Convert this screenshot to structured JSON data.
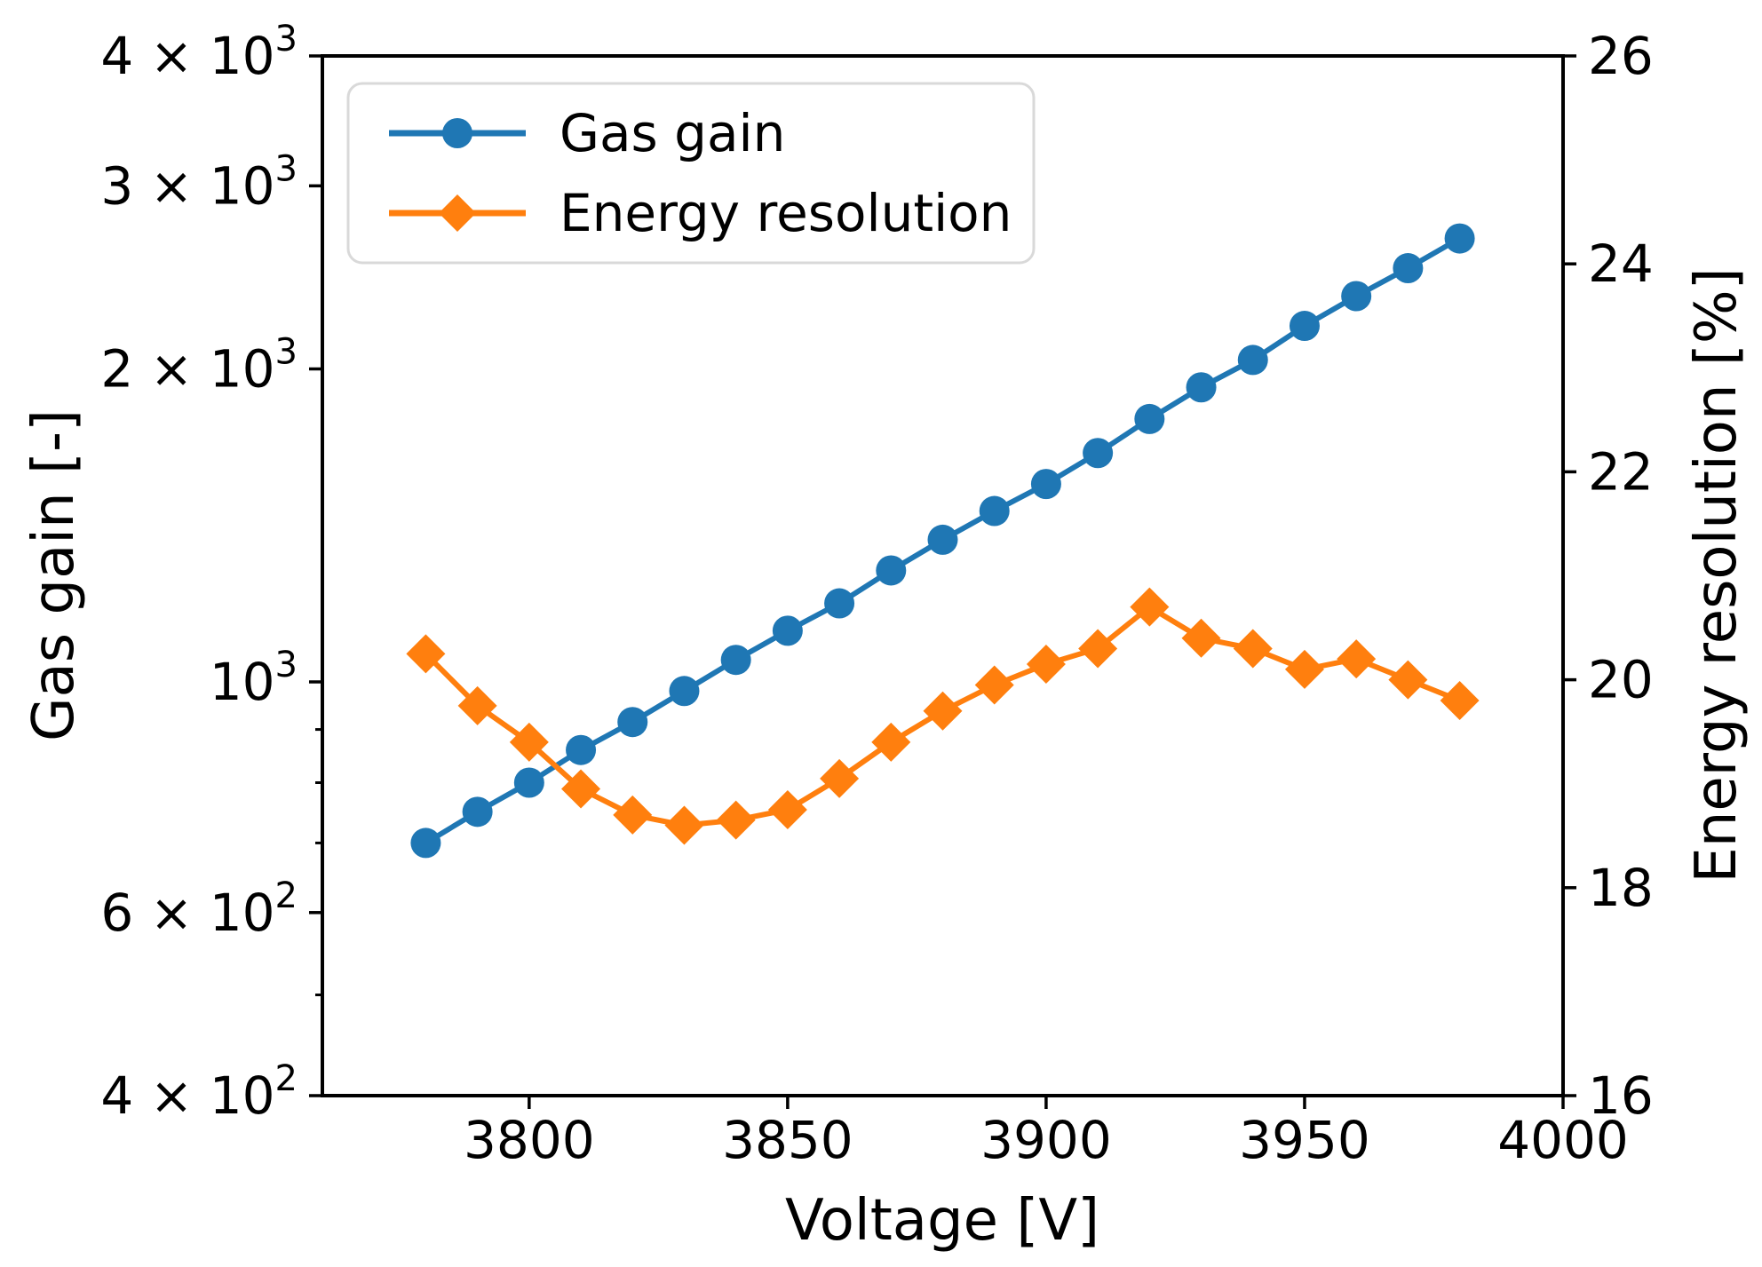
{
  "figure": {
    "background": "#ffffff"
  },
  "axes": {
    "xlabel": "Voltage [V]",
    "ylabel_left": "Gas gain [-]",
    "ylabel_right": "Energy resolution [%]"
  },
  "legend": {
    "position": "upper left",
    "items": [
      {
        "label": "Gas gain",
        "color": "#1f77b4",
        "marker": "circle"
      },
      {
        "label": "Energy resolution",
        "color": "#ff7f0e",
        "marker": "diamond"
      }
    ]
  },
  "colors": {
    "gas_gain": "#1f77b4",
    "energy_resolution": "#ff7f0e",
    "axis": "#000000",
    "legend_border": "#d9d9d9"
  },
  "chart_data": {
    "type": "line",
    "title": "",
    "xlabel": "Voltage [V]",
    "ylabel_left": "Gas gain [-]",
    "ylabel_right": "Energy resolution [%]",
    "grid": false,
    "legend_position": "upper left",
    "x_axis": {
      "min": 3760,
      "max": 4000,
      "ticks": [
        {
          "v": 3800,
          "label": "3800"
        },
        {
          "v": 3850,
          "label": "3850"
        },
        {
          "v": 3900,
          "label": "3900"
        },
        {
          "v": 3950,
          "label": "3950"
        },
        {
          "v": 4000,
          "label": "4000"
        }
      ]
    },
    "y_axis_left": {
      "scale": "log",
      "min": 400,
      "max": 4000,
      "labeled_ticks": [
        {
          "v": 4000,
          "base": "4 × 10",
          "exp": "3"
        },
        {
          "v": 3000,
          "base": "3 × 10",
          "exp": "3"
        },
        {
          "v": 2000,
          "base": "2 × 10",
          "exp": "3"
        },
        {
          "v": 1000,
          "base": "10",
          "exp": "3"
        },
        {
          "v": 600,
          "base": "6 × 10",
          "exp": "2"
        },
        {
          "v": 400,
          "base": "4 × 10",
          "exp": "2"
        }
      ],
      "minor_ticks": [
        500,
        700,
        800,
        900
      ]
    },
    "y_axis_right": {
      "scale": "linear",
      "min": 16,
      "max": 26,
      "ticks": [
        16,
        18,
        20,
        22,
        24,
        26
      ]
    },
    "x": [
      3780,
      3790,
      3800,
      3810,
      3820,
      3830,
      3840,
      3850,
      3860,
      3870,
      3880,
      3890,
      3900,
      3910,
      3920,
      3930,
      3940,
      3950,
      3960,
      3970,
      3980
    ],
    "series": [
      {
        "name": "Gas gain",
        "axis": "left",
        "color": "#1f77b4",
        "marker": "circle",
        "values": [
          700,
          750,
          800,
          860,
          915,
          980,
          1050,
          1120,
          1190,
          1280,
          1370,
          1460,
          1550,
          1660,
          1790,
          1920,
          2040,
          2200,
          2350,
          2500,
          2670
        ]
      },
      {
        "name": "Energy resolution",
        "axis": "right",
        "color": "#ff7f0e",
        "marker": "diamond",
        "values": [
          20.25,
          19.75,
          19.4,
          18.95,
          18.7,
          18.6,
          18.65,
          18.75,
          19.05,
          19.4,
          19.7,
          19.95,
          20.15,
          20.3,
          20.7,
          20.4,
          20.3,
          20.1,
          20.2,
          20.0,
          19.8
        ]
      }
    ]
  }
}
